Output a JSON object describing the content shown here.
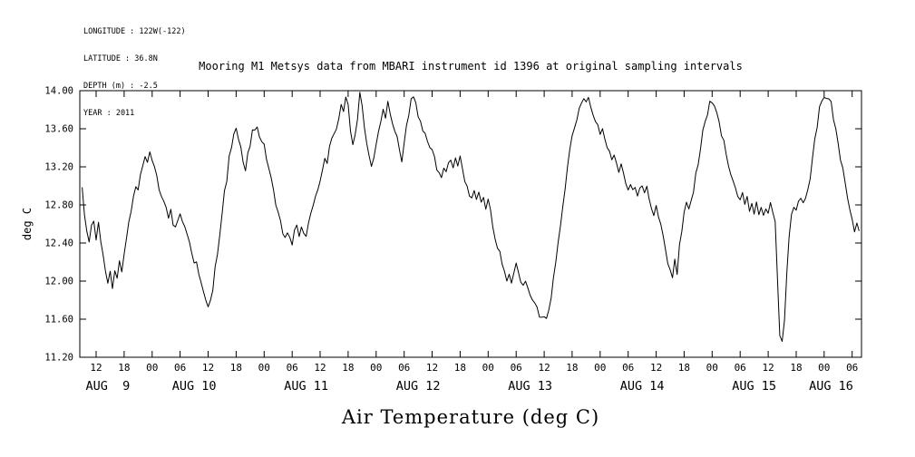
{
  "metadata": {
    "longitude": "LONGITUDE : 122W(-122)",
    "latitude": "LATITUDE : 36.8N",
    "depth": "DEPTH (m) : -2.5",
    "year": "YEAR : 2011"
  },
  "colors": {
    "background": "#ffffff",
    "stroke": "#000000"
  },
  "chart_data": {
    "type": "line",
    "title": "Mooring M1 Metsys data from MBARI instrument id 1396 at original sampling intervals",
    "xlabel": "Air Temperature (deg C)",
    "ylabel": "deg C",
    "ylim": [
      11.2,
      14.0
    ],
    "y_tick_values": [
      14.0,
      13.6,
      13.2,
      12.8,
      12.4,
      12.0,
      11.6,
      11.2
    ],
    "y_tick_labels": [
      "14.00",
      "13.60",
      "13.20",
      "12.80",
      "12.40",
      "12.00",
      "11.60",
      "11.20"
    ],
    "x_domain_hours": [
      8.5,
      176
    ],
    "x_tick_hours": [
      12,
      18,
      24,
      30,
      36,
      42,
      48,
      54,
      60,
      66,
      72,
      78,
      84,
      90,
      96,
      102,
      108,
      114,
      120,
      126,
      132,
      138,
      144,
      150,
      156,
      162,
      168,
      174
    ],
    "x_tick_labels": [
      "12",
      "18",
      "00",
      "06",
      "12",
      "18",
      "00",
      "06",
      "12",
      "18",
      "00",
      "06",
      "12",
      "18",
      "00",
      "06",
      "12",
      "18",
      "00",
      "06",
      "12",
      "18",
      "00",
      "06",
      "12",
      "18",
      "00",
      "06"
    ],
    "day_labels": [
      "AUG  9",
      "AUG 10",
      "AUG 11",
      "AUG 12",
      "AUG 13",
      "AUG 14",
      "AUG 15",
      "AUG 16"
    ],
    "day_label_hours": [
      14.5,
      33,
      57,
      81,
      105,
      129,
      153,
      169.5
    ],
    "grid": false,
    "legend": false,
    "noise_amplitude_degC": 0.04,
    "series": [
      {
        "name": "air temperature (deg C)",
        "start_hour": 9.0,
        "step_hours": 0.5,
        "values": [
          12.95,
          12.7,
          12.52,
          12.42,
          12.58,
          12.62,
          12.45,
          12.58,
          12.42,
          12.28,
          12.12,
          11.98,
          12.08,
          11.95,
          12.12,
          12.02,
          12.22,
          12.12,
          12.32,
          12.48,
          12.62,
          12.72,
          12.88,
          13.02,
          12.92,
          13.12,
          13.18,
          13.28,
          13.22,
          13.32,
          13.28,
          13.18,
          13.08,
          12.98,
          12.92,
          12.82,
          12.78,
          12.68,
          12.72,
          12.62,
          12.55,
          12.65,
          12.72,
          12.62,
          12.58,
          12.48,
          12.42,
          12.32,
          12.22,
          12.18,
          12.08,
          11.95,
          11.88,
          11.78,
          11.72,
          11.78,
          11.92,
          12.12,
          12.32,
          12.52,
          12.72,
          12.92,
          13.08,
          13.28,
          13.42,
          13.52,
          13.58,
          13.48,
          13.38,
          13.28,
          13.15,
          13.32,
          13.45,
          13.55,
          13.58,
          13.62,
          13.55,
          13.48,
          13.42,
          13.3,
          13.18,
          13.05,
          12.92,
          12.8,
          12.7,
          12.6,
          12.52,
          12.45,
          12.52,
          12.45,
          12.4,
          12.5,
          12.55,
          12.48,
          12.58,
          12.52,
          12.48,
          12.58,
          12.68,
          12.78,
          12.88,
          12.98,
          13.08,
          13.18,
          13.28,
          13.22,
          13.38,
          13.48,
          13.55,
          13.62,
          13.72,
          13.88,
          13.78,
          13.95,
          13.88,
          13.6,
          13.42,
          13.52,
          13.72,
          13.95,
          13.82,
          13.58,
          13.42,
          13.3,
          13.22,
          13.32,
          13.45,
          13.58,
          13.68,
          13.78,
          13.72,
          13.85,
          13.78,
          13.68,
          13.58,
          13.48,
          13.35,
          13.25,
          13.42,
          13.62,
          13.78,
          13.9,
          13.95,
          13.85,
          13.75,
          13.68,
          13.6,
          13.52,
          13.48,
          13.42,
          13.38,
          13.28,
          13.18,
          13.12,
          13.08,
          13.18,
          13.12,
          13.22,
          13.28,
          13.18,
          13.28,
          13.22,
          13.28,
          13.18,
          13.08,
          12.98,
          12.92,
          12.88,
          12.95,
          12.85,
          12.9,
          12.8,
          12.85,
          12.78,
          12.85,
          12.72,
          12.6,
          12.48,
          12.38,
          12.28,
          12.18,
          12.08,
          12.02,
          12.1,
          12.0,
          12.08,
          12.15,
          12.08,
          12.0,
          11.95,
          12.02,
          11.9,
          11.85,
          11.8,
          11.75,
          11.7,
          11.65,
          11.6,
          11.65,
          11.62,
          11.72,
          11.85,
          12.02,
          12.22,
          12.42,
          12.62,
          12.82,
          13.0,
          13.18,
          13.35,
          13.5,
          13.6,
          13.7,
          13.8,
          13.88,
          13.95,
          13.9,
          13.92,
          13.85,
          13.78,
          13.7,
          13.62,
          13.55,
          13.6,
          13.5,
          13.42,
          13.35,
          13.28,
          13.35,
          13.25,
          13.18,
          13.22,
          13.12,
          13.05,
          12.98,
          13.05,
          12.95,
          13.0,
          12.9,
          12.95,
          13.0,
          12.92,
          12.96,
          12.86,
          12.8,
          12.72,
          12.78,
          12.68,
          12.58,
          12.45,
          12.32,
          12.2,
          12.1,
          12.05,
          12.25,
          12.08,
          12.35,
          12.55,
          12.72,
          12.82,
          12.78,
          12.85,
          12.95,
          13.1,
          13.25,
          13.4,
          13.55,
          13.68,
          13.78,
          13.85,
          13.88,
          13.82,
          13.75,
          13.65,
          13.55,
          13.45,
          13.35,
          13.25,
          13.15,
          13.05,
          12.98,
          12.9,
          12.85,
          12.9,
          12.8,
          12.85,
          12.76,
          12.82,
          12.74,
          12.8,
          12.72,
          12.78,
          12.7,
          12.78,
          12.72,
          12.8,
          12.75,
          12.6,
          12.0,
          11.45,
          11.35,
          11.6,
          12.1,
          12.5,
          12.7,
          12.78,
          12.72,
          12.8,
          12.85,
          12.8,
          12.88,
          12.95,
          13.1,
          13.3,
          13.5,
          13.65,
          13.8,
          13.9,
          13.95,
          13.9,
          13.92,
          13.85,
          13.72,
          13.58,
          13.42,
          13.3,
          13.18,
          13.05,
          12.9,
          12.75,
          12.65,
          12.55,
          12.58,
          12.52
        ]
      }
    ]
  }
}
